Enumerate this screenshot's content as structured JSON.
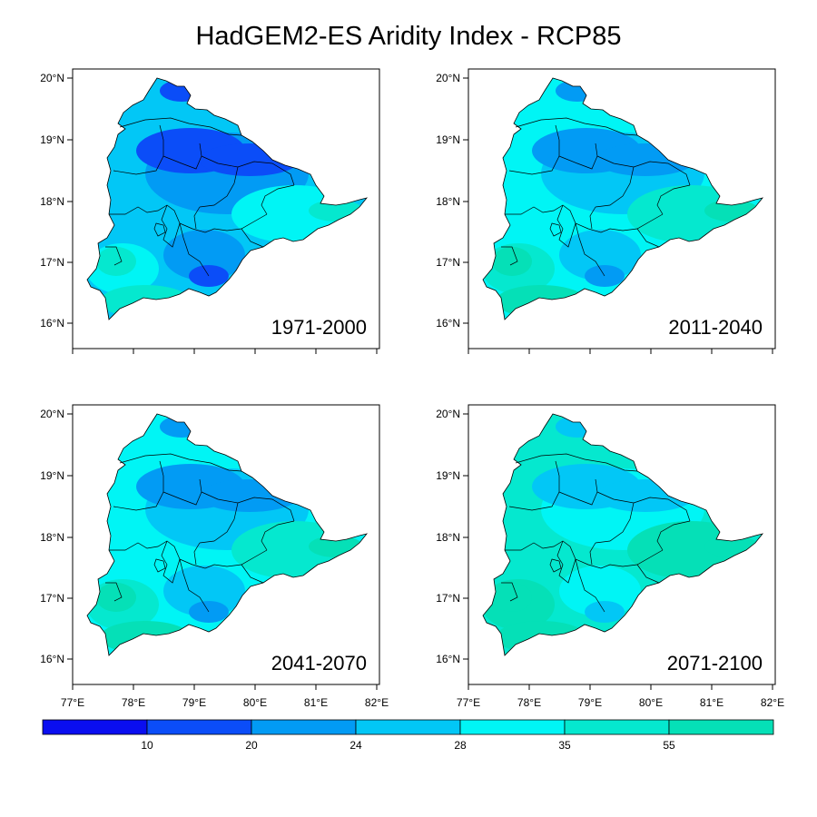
{
  "title": "HadGEM2-ES Aridity Index - RCP85",
  "lat_labels": [
    "20°N",
    "19°N",
    "18°N",
    "17°N",
    "16°N"
  ],
  "lon_labels": [
    "77°E",
    "78°E",
    "79°E",
    "80°E",
    "81°E",
    "82°E"
  ],
  "panels": [
    {
      "period": "1971-2000",
      "dominant_class": 3,
      "dry_class": 1
    },
    {
      "period": "2011-2040",
      "dominant_class": 4,
      "dry_class": 2
    },
    {
      "period": "2041-2070",
      "dominant_class": 4,
      "dry_class": 2
    },
    {
      "period": "2071-2100",
      "dominant_class": 5,
      "dry_class": 3
    }
  ],
  "colorbar": {
    "labels": [
      "10",
      "20",
      "24",
      "28",
      "35",
      "55"
    ],
    "colors": [
      "#0a0ef0",
      "#0b4df8",
      "#029bf4",
      "#02c7f6",
      "#00f5f5",
      "#05e8cf",
      "#05e0b7"
    ]
  }
}
